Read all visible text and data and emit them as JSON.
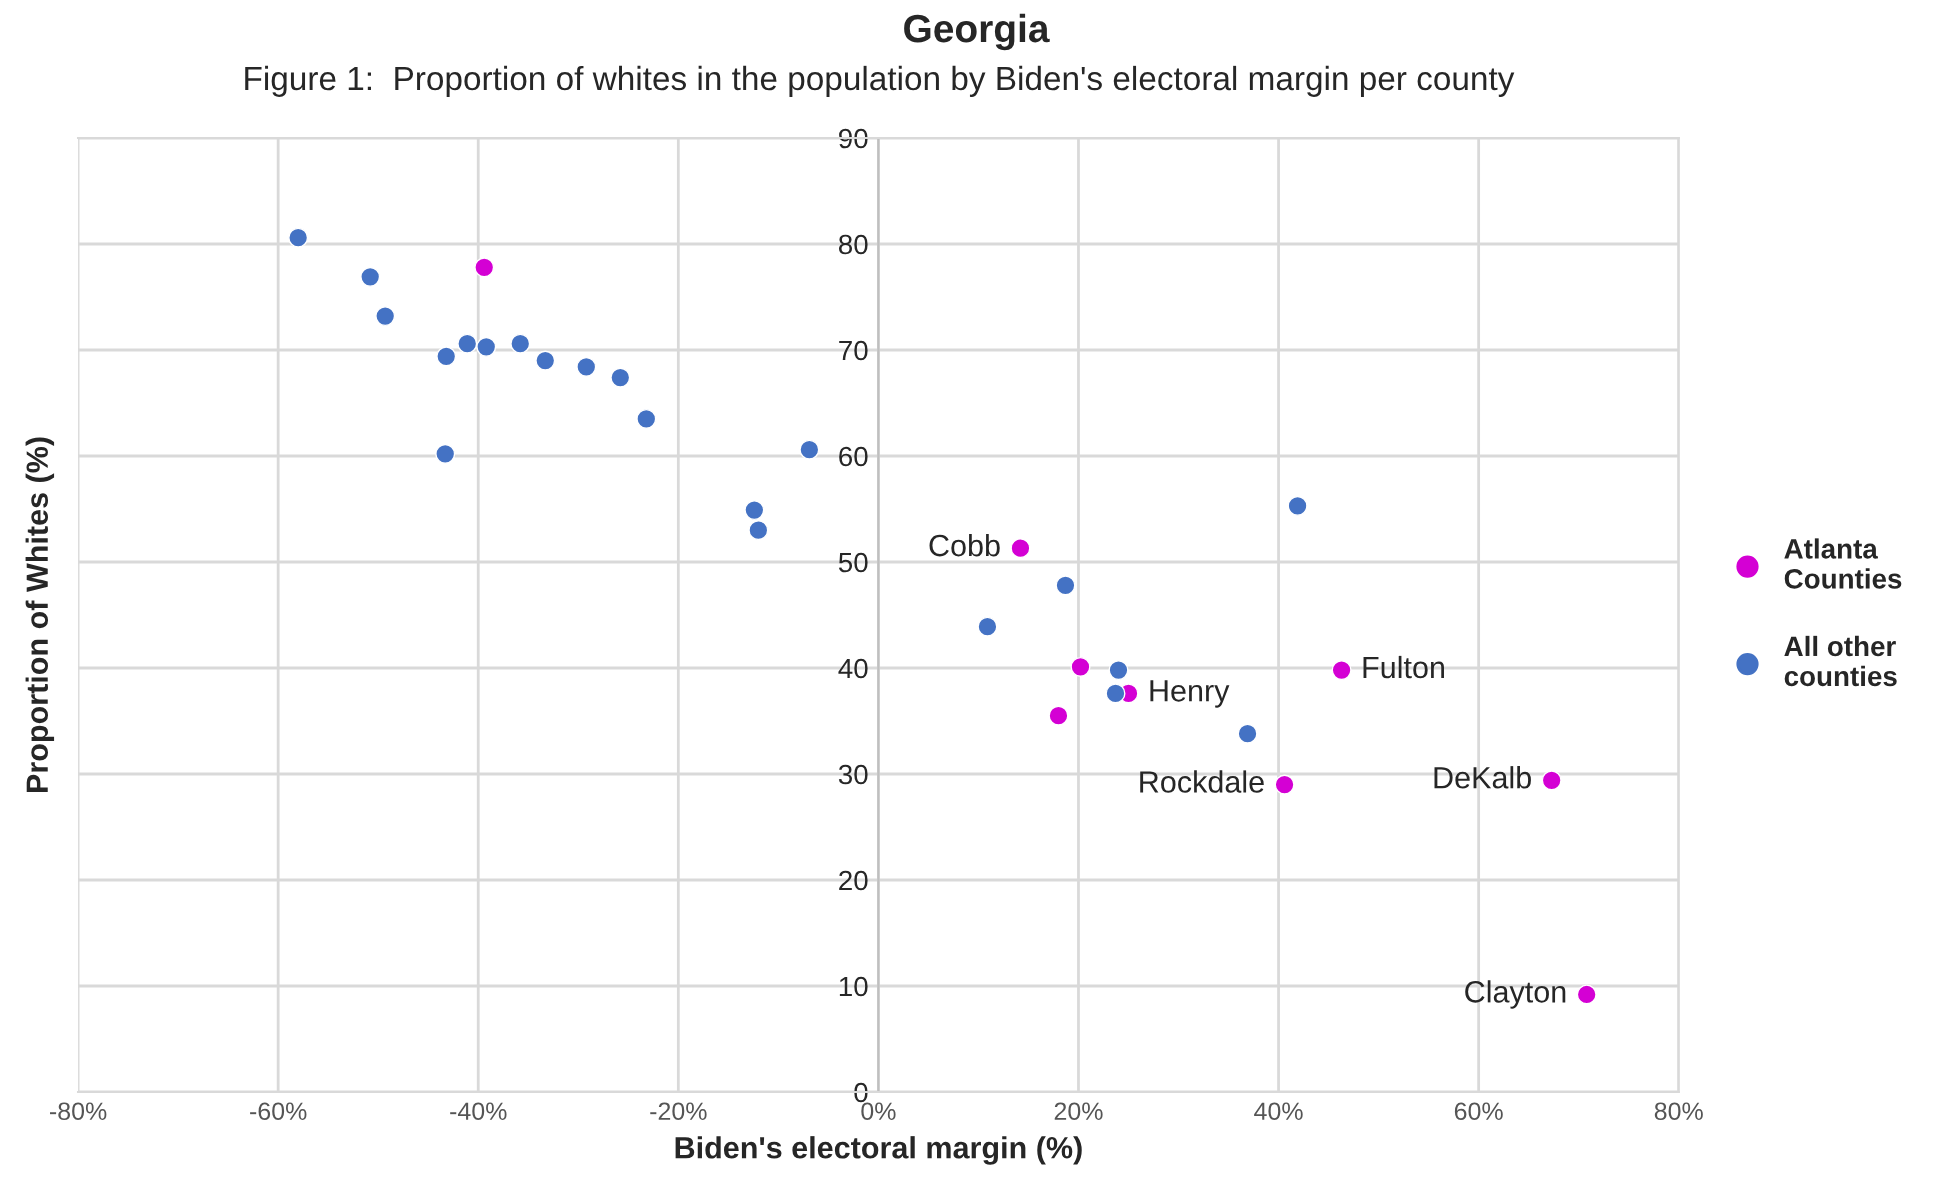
{
  "chart_data": {
    "type": "scatter",
    "title": "Georgia",
    "subtitle": "Figure 1:  Proportion of whites in the population by Biden's electoral margin per county",
    "xlabel": "Biden's electoral margin (%)",
    "ylabel": "Proportion of Whites (%)",
    "series": [
      {
        "name": "Atlanta Counties",
        "color": "#d400d4",
        "x": [
          -39.4,
          14.2,
          20.2,
          25.0,
          18.0,
          46.3,
          40.6,
          67.3,
          70.8
        ],
        "values": [
          77.8,
          51.3,
          40.1,
          37.6,
          35.5,
          39.8,
          29.0,
          29.4,
          9.2
        ]
      },
      {
        "name": "All other counties",
        "color": "#4472c4",
        "x": [
          -58.0,
          -50.8,
          -49.3,
          -43.2,
          -41.1,
          -39.2,
          -35.8,
          -33.3,
          -29.2,
          -25.8,
          -23.2,
          -43.3,
          -6.9,
          -12.4,
          -12.0,
          41.9,
          18.7,
          10.9,
          24.0,
          23.7,
          36.9
        ],
        "values": [
          80.6,
          76.9,
          73.2,
          69.4,
          70.6,
          70.3,
          70.6,
          69.0,
          68.4,
          67.4,
          63.5,
          60.2,
          60.6,
          54.9,
          53.0,
          55.3,
          47.8,
          43.9,
          39.8,
          37.6,
          33.8
        ]
      }
    ],
    "annotations": [
      {
        "text": "Cobb",
        "x": 14.2,
        "y": 51.3
      },
      {
        "text": "Henry",
        "x": 25.0,
        "y": 37.6
      },
      {
        "text": "Fulton",
        "x": 46.3,
        "y": 39.8
      },
      {
        "text": "Rockdale",
        "x": 40.6,
        "y": 29.0
      },
      {
        "text": "DeKalb",
        "x": 67.3,
        "y": 29.4
      },
      {
        "text": "Clayton",
        "x": 70.8,
        "y": 9.2
      }
    ],
    "xlim": [
      -80,
      80
    ],
    "xticks": [
      {
        "value": -80,
        "label": "-80%"
      },
      {
        "value": -60,
        "label": "-60%"
      },
      {
        "value": -40,
        "label": "-40%"
      },
      {
        "value": -20,
        "label": "-20%"
      },
      {
        "value": 0,
        "label": "0%"
      },
      {
        "value": 20,
        "label": "20%"
      },
      {
        "value": 40,
        "label": "40%"
      },
      {
        "value": 60,
        "label": "60%"
      },
      {
        "value": 80,
        "label": "80%"
      }
    ],
    "ylim": [
      0,
      90
    ],
    "yticks": [
      0,
      10,
      20,
      30,
      40,
      50,
      60,
      70,
      80,
      90
    ],
    "grid": true,
    "legend": "right",
    "marker": "circle"
  }
}
